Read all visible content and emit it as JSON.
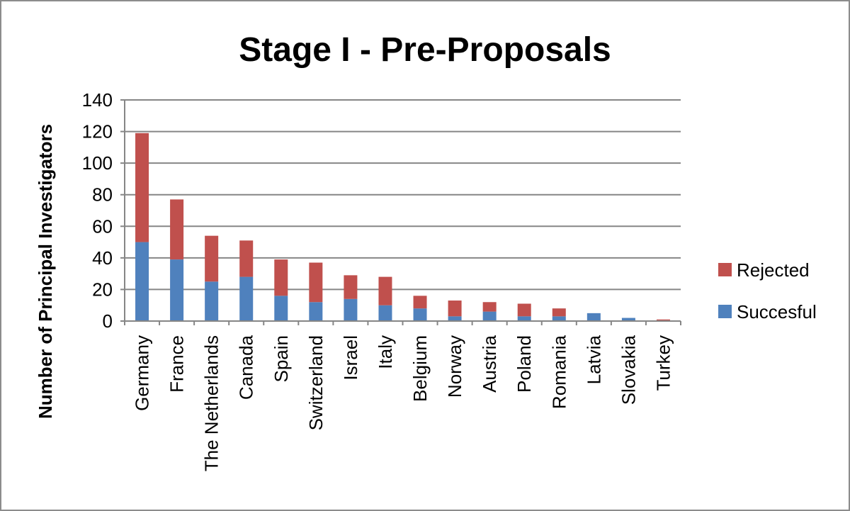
{
  "chart_data": {
    "type": "bar",
    "stacked": true,
    "title": "Stage I - Pre-Proposals",
    "xlabel": "",
    "ylabel": "Number of Principal Investigators",
    "ylim": [
      0,
      140
    ],
    "yticks": [
      0,
      20,
      40,
      60,
      80,
      100,
      120,
      140
    ],
    "grid": true,
    "legend_position": "right",
    "categories": [
      "Germany",
      "France",
      "The Netherlands",
      "Canada",
      "Spain",
      "Switzerland",
      "Israel",
      "Italy",
      "Belgium",
      "Norway",
      "Austria",
      "Poland",
      "Romania",
      "Latvia",
      "Slovakia",
      "Turkey"
    ],
    "series": [
      {
        "name": "Succesful",
        "color": "#4f81bd",
        "values": [
          50,
          39,
          25,
          28,
          16,
          12,
          14,
          10,
          8,
          3,
          6,
          3,
          3,
          5,
          2,
          0
        ]
      },
      {
        "name": "Rejected",
        "color": "#c0504d",
        "values": [
          69,
          38,
          29,
          23,
          23,
          25,
          15,
          18,
          8,
          10,
          6,
          8,
          5,
          0,
          0,
          1
        ]
      }
    ]
  }
}
